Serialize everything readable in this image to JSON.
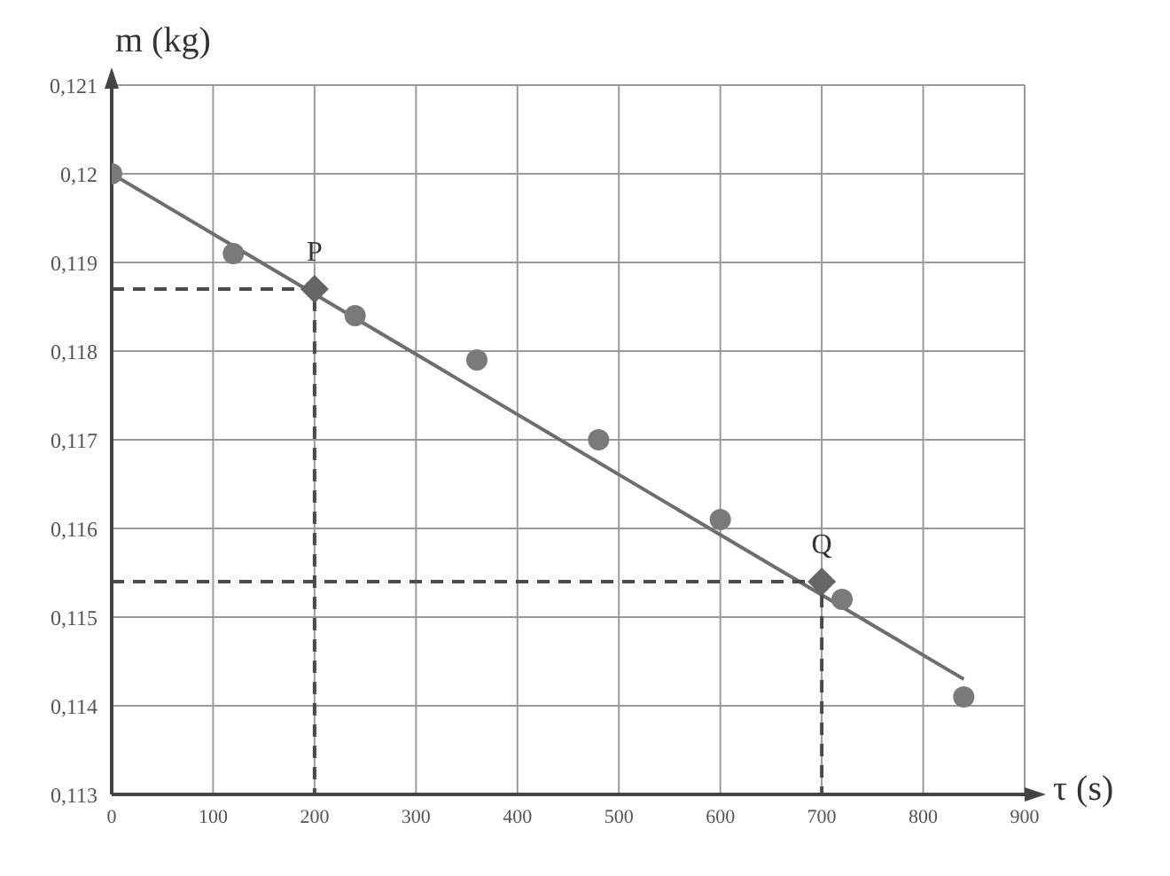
{
  "chart_data": {
    "type": "scatter",
    "xlabel": "τ (s)",
    "ylabel": "m (kg)",
    "xlim": [
      0,
      900
    ],
    "ylim": [
      0.113,
      0.121
    ],
    "xticks": [
      0,
      100,
      200,
      300,
      400,
      500,
      600,
      700,
      800,
      900
    ],
    "yticks": [
      {
        "value": 0.113,
        "label": "0,113"
      },
      {
        "value": 0.114,
        "label": "0,114"
      },
      {
        "value": 0.115,
        "label": "0,115"
      },
      {
        "value": 0.116,
        "label": "0,116"
      },
      {
        "value": 0.117,
        "label": "0,117"
      },
      {
        "value": 0.118,
        "label": "0,118"
      },
      {
        "value": 0.119,
        "label": "0,119"
      },
      {
        "value": 0.12,
        "label": "0,12"
      },
      {
        "value": 0.121,
        "label": "0,121"
      }
    ],
    "grid": true,
    "series": [
      {
        "color": "#7a7a7a",
        "marker": "circle",
        "x": [
          0,
          120,
          240,
          360,
          480,
          600,
          720,
          840
        ],
        "values": [
          0.12,
          0.1191,
          0.1184,
          0.1179,
          0.117,
          0.1161,
          0.1152,
          0.1141
        ]
      },
      {
        "type": "line",
        "color": "#6e6e6e",
        "marker": "none",
        "line_style": "solid",
        "x": [
          0,
          840
        ],
        "values": [
          0.12,
          0.1143
        ]
      },
      {
        "type": "line",
        "color": "#4a4a4a",
        "marker": "none",
        "line_style": "dashed",
        "x": [
          0,
          200,
          200
        ],
        "values": [
          0.1187,
          0.1187,
          0.113
        ]
      },
      {
        "type": "line",
        "color": "#4a4a4a",
        "marker": "none",
        "line_style": "dashed",
        "x": [
          0,
          700,
          700
        ],
        "values": [
          0.1154,
          0.1154,
          0.113
        ]
      },
      {
        "color": "#666666",
        "marker": "diamond",
        "x": [
          200,
          700
        ],
        "values": [
          0.1187,
          0.1154
        ]
      }
    ],
    "annotations": [
      {
        "text": "P",
        "x": 200,
        "y": 0.1187
      },
      {
        "text": "Q",
        "x": 700,
        "y": 0.1154
      }
    ]
  }
}
